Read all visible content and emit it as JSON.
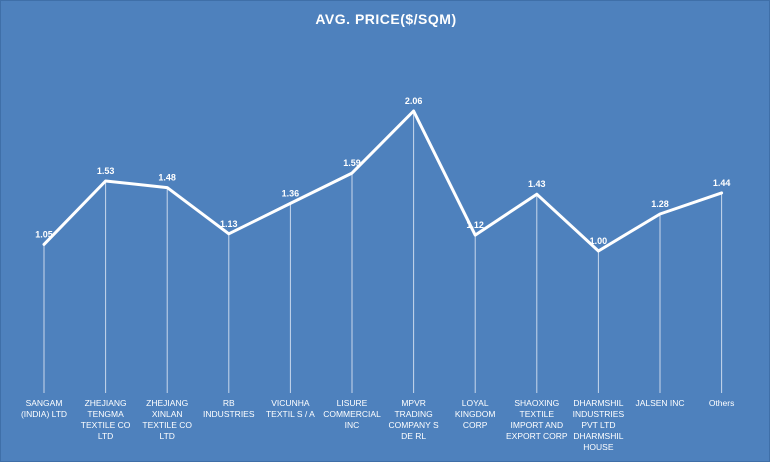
{
  "chart_data": {
    "type": "line",
    "title": "AVG. PRICE($/SQM)",
    "categories": [
      [
        "SANGAM",
        "(INDIA) LTD"
      ],
      [
        "ZHEJIANG",
        "TENGMA",
        "TEXTILE CO",
        "LTD"
      ],
      [
        "ZHEJIANG",
        "XINLAN",
        "TEXTILE CO",
        "LTD"
      ],
      [
        "RB",
        "INDUSTRIES"
      ],
      [
        "VICUNHA",
        "TEXTIL S / A"
      ],
      [
        "LISURE",
        "COMMERCIAL",
        "INC"
      ],
      [
        "MPVR",
        "TRADING",
        "COMPANY S",
        "DE RL"
      ],
      [
        "LOYAL",
        "KINGDOM",
        "CORP"
      ],
      [
        "SHAOXING",
        "TEXTILE",
        "IMPORT AND",
        "EXPORT CORP"
      ],
      [
        "DHARMSHIL",
        "INDUSTRIES",
        "PVT LTD",
        "DHARMSHIL",
        "HOUSE"
      ],
      [
        "JALSEN INC"
      ],
      [
        "Others"
      ]
    ],
    "values": [
      1.05,
      1.53,
      1.48,
      1.13,
      1.36,
      1.59,
      2.06,
      1.12,
      1.43,
      1.0,
      1.28,
      1.44
    ],
    "value_labels": [
      "1.05",
      "1.53",
      "1.48",
      "1.13",
      "1.36",
      "1.59",
      "2.06",
      "1.12",
      "1.43",
      "1.00",
      "1.28",
      "1.44"
    ],
    "line_color": "#ffffff",
    "background_color": "#4e81bd",
    "drop_lines": true,
    "grid": false,
    "legend": "none"
  }
}
